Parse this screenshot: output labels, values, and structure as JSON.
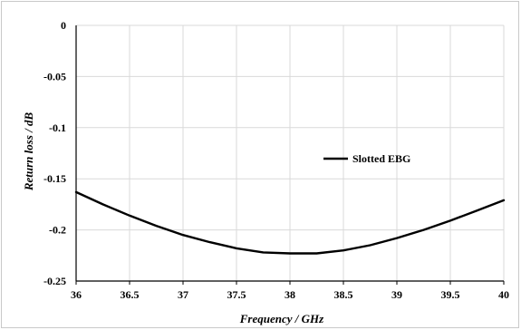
{
  "chart_data": {
    "type": "line",
    "xlabel": "Frequency / GHz",
    "ylabel": "Return loss / dB",
    "xlim": [
      36,
      40
    ],
    "ylim": [
      -0.25,
      0
    ],
    "x_ticks": [
      "36",
      "36.5",
      "37",
      "37.5",
      "38",
      "38.5",
      "39",
      "39.5",
      "40"
    ],
    "y_ticks": [
      "0",
      "-0.05",
      "-0.1",
      "-0.15",
      "-0.2",
      "-0.25"
    ],
    "grid": true,
    "legend_position": "center-right",
    "series": [
      {
        "name": "Slotted EBG",
        "color": "#000000",
        "x": [
          36,
          36.25,
          36.5,
          36.75,
          37,
          37.25,
          37.5,
          37.75,
          38,
          38.25,
          38.5,
          38.75,
          39,
          39.25,
          39.5,
          39.75,
          40
        ],
        "y": [
          -0.163,
          -0.175,
          -0.186,
          -0.196,
          -0.205,
          -0.212,
          -0.218,
          -0.222,
          -0.223,
          -0.223,
          -0.22,
          -0.215,
          -0.208,
          -0.2,
          -0.191,
          -0.181,
          -0.171
        ]
      }
    ]
  }
}
